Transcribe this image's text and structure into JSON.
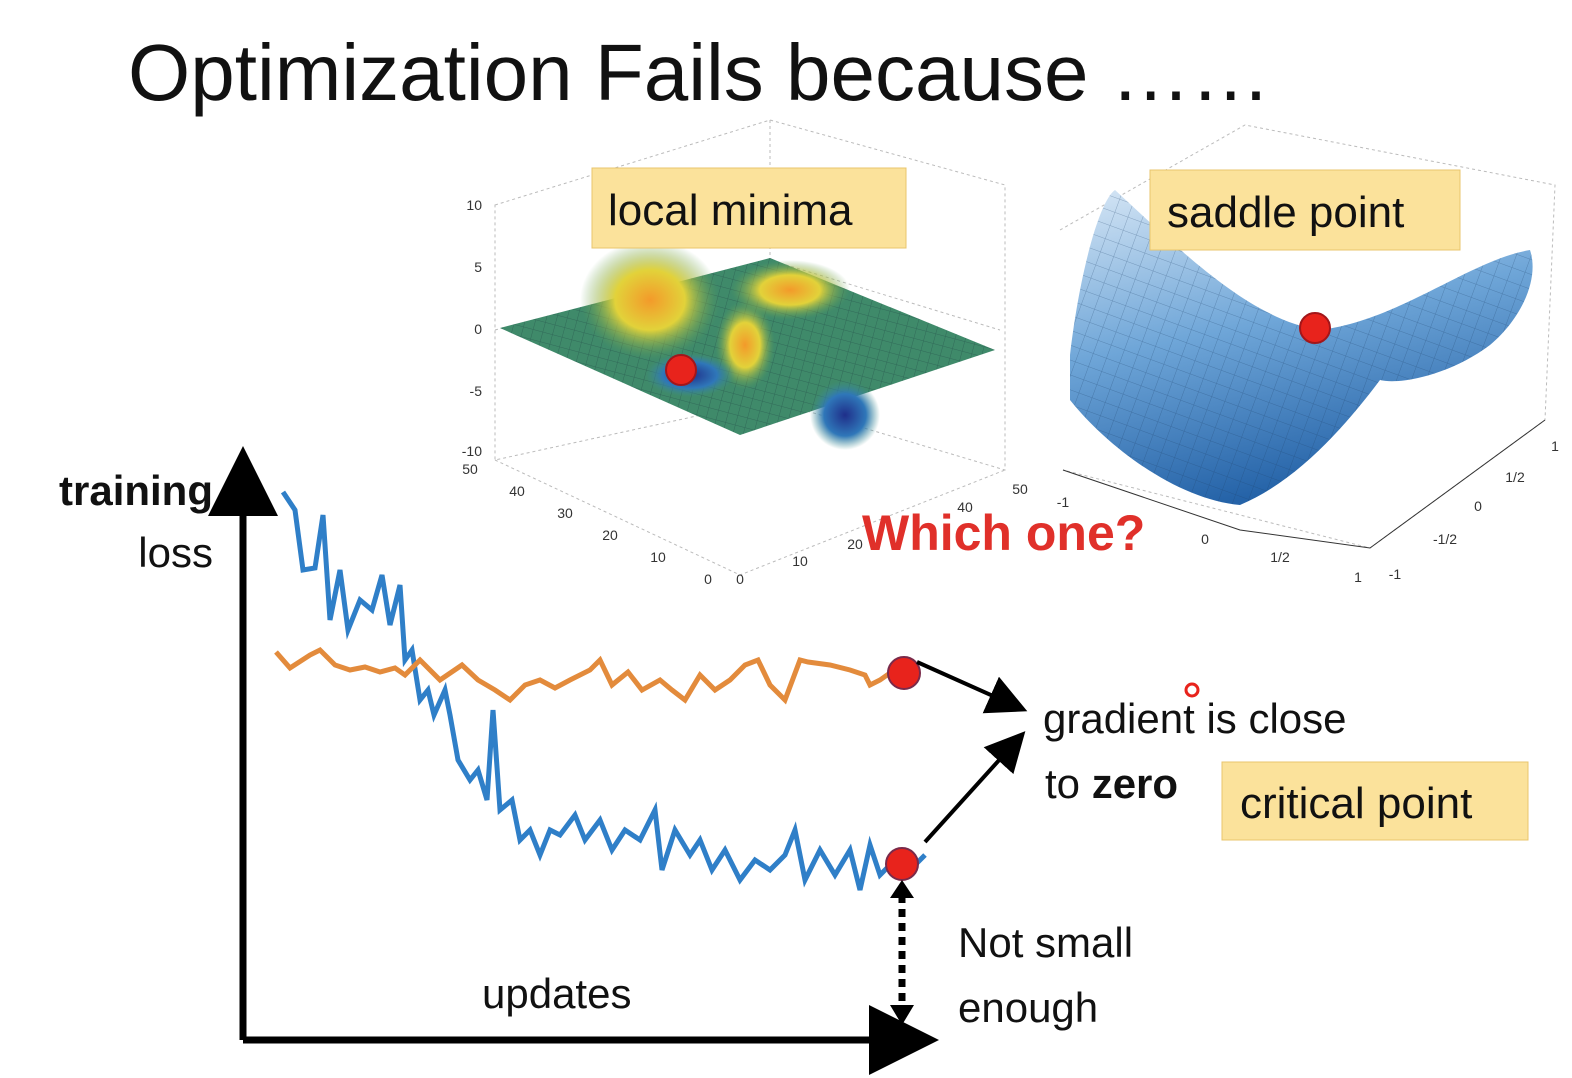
{
  "title": "Optimization Fails because ……",
  "left_plot": {
    "label": "local minima",
    "z_ticks": [
      "10",
      "5",
      "0",
      "-5",
      "-10"
    ],
    "y_ticks": [
      "50",
      "40",
      "30",
      "20",
      "10",
      "0"
    ],
    "x_ticks": [
      "0",
      "10",
      "20",
      "40",
      "50"
    ]
  },
  "right_plot": {
    "label": "saddle point",
    "x_ticks": [
      "-1",
      "0",
      "1/2",
      "1"
    ],
    "y_ticks": [
      "-1",
      "-1/2",
      "0",
      "1/2",
      "1"
    ]
  },
  "question": "Which one?",
  "graph": {
    "y_label_bold": "training",
    "y_label": "loss",
    "x_label": "updates"
  },
  "gradient_note": {
    "line1": "gradient is close",
    "line2_prefix": "to",
    "line2_bold": "zero"
  },
  "critical_point": "critical point",
  "not_small": {
    "line1": "Not small",
    "line2": "enough"
  }
}
